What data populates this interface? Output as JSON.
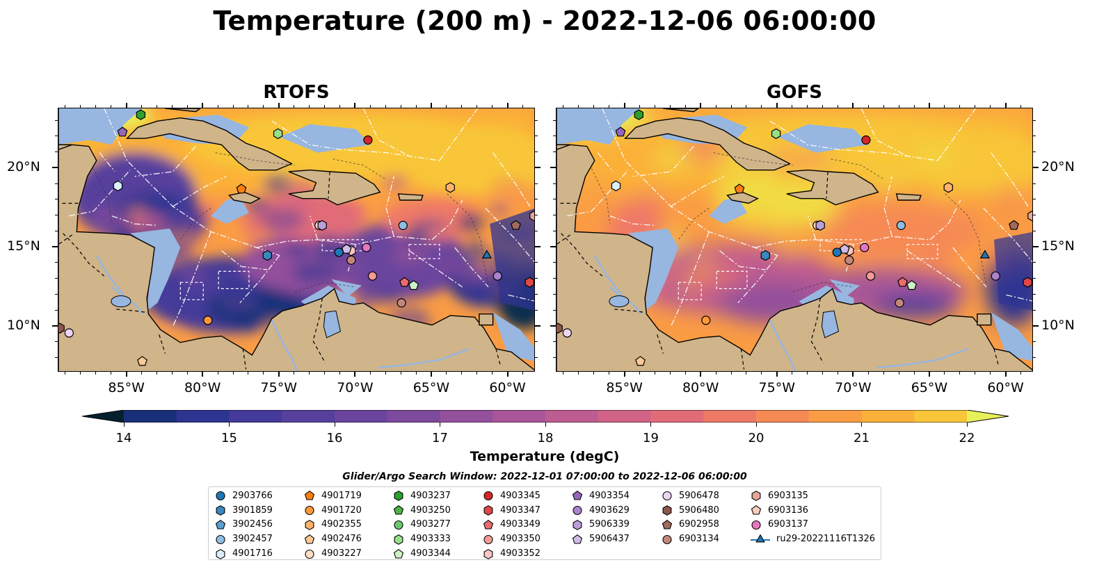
{
  "title": "Temperature (200 m) - 2022-12-06 06:00:00",
  "panels": [
    {
      "title": "RTOFS"
    },
    {
      "title": "GOFS"
    }
  ],
  "lon_ticks": [
    "85°W",
    "80°W",
    "75°W",
    "70°W",
    "65°W",
    "60°W"
  ],
  "lat_ticks": [
    "20°N",
    "15°N",
    "10°N"
  ],
  "map_extent": {
    "lon": [
      -89.5,
      -58.2
    ],
    "lat": [
      7.1,
      23.8
    ]
  },
  "colorbar": {
    "label": "Temperature (degC)",
    "ticks": [
      "14",
      "15",
      "16",
      "17",
      "18",
      "19",
      "20",
      "21",
      "22"
    ],
    "range": [
      14,
      22
    ],
    "colormap": "thermal",
    "colors": [
      "#04202f",
      "#0b2d4e",
      "#18307a",
      "#2e3491",
      "#443a99",
      "#573f9c",
      "#6a449d",
      "#7e4a9d",
      "#93509b",
      "#a85697",
      "#bd5c90",
      "#d06386",
      "#e16c78",
      "#ee7967",
      "#f68a54",
      "#fa9c44",
      "#fbb139",
      "#f8c638",
      "#f1dc43",
      "#e8f059"
    ]
  },
  "legend": {
    "title": "Glider/Argo Search Window: 2022-12-01 07:00:00 to 2022-12-06 06:00:00",
    "columns": [
      [
        {
          "label": "2903766",
          "marker": "circle",
          "color": "#1f77b4"
        },
        {
          "label": "3901859",
          "marker": "hexagon",
          "color": "#3a88c0"
        },
        {
          "label": "3902456",
          "marker": "pentagon",
          "color": "#5b9fd0"
        },
        {
          "label": "3902457",
          "marker": "circle",
          "color": "#8fbde3"
        },
        {
          "label": "4901716",
          "marker": "hexagon",
          "color": "#dceefa"
        }
      ],
      [
        {
          "label": "4901719",
          "marker": "pentagon",
          "color": "#ff7f0e"
        },
        {
          "label": "4901720",
          "marker": "circle",
          "color": "#ff9a3c"
        },
        {
          "label": "4902355",
          "marker": "hexagon",
          "color": "#ffb26b"
        },
        {
          "label": "4902476",
          "marker": "pentagon",
          "color": "#ffc896"
        },
        {
          "label": "4903227",
          "marker": "circle",
          "color": "#ffe0c2"
        }
      ],
      [
        {
          "label": "4903237",
          "marker": "hexagon",
          "color": "#2ca02c"
        },
        {
          "label": "4903250",
          "marker": "pentagon",
          "color": "#48b448"
        },
        {
          "label": "4903277",
          "marker": "circle",
          "color": "#6cc86c"
        },
        {
          "label": "4903333",
          "marker": "hexagon",
          "color": "#98df8a"
        },
        {
          "label": "4903344",
          "marker": "pentagon",
          "color": "#cdf2c4"
        }
      ],
      [
        {
          "label": "4903345",
          "marker": "circle",
          "color": "#d62728"
        },
        {
          "label": "4903347",
          "marker": "hexagon",
          "color": "#e04848"
        },
        {
          "label": "4903349",
          "marker": "pentagon",
          "color": "#ea6c6c"
        },
        {
          "label": "4903350",
          "marker": "circle",
          "color": "#f59a98"
        },
        {
          "label": "4903352",
          "marker": "hexagon",
          "color": "#fbc6c4"
        }
      ],
      [
        {
          "label": "4903354",
          "marker": "pentagon",
          "color": "#9467bd"
        },
        {
          "label": "4903629",
          "marker": "circle",
          "color": "#a983cb"
        },
        {
          "label": "5906339",
          "marker": "hexagon",
          "color": "#bc9ed8"
        },
        {
          "label": "5906437",
          "marker": "pentagon",
          "color": "#d1bce6"
        },
        {
          "label": "",
          "marker": "none",
          "color": ""
        }
      ],
      [
        {
          "label": "5906478",
          "marker": "circle",
          "color": "#ead6f5"
        },
        {
          "label": "5906480",
          "marker": "hexagon",
          "color": "#8c564b"
        },
        {
          "label": "6902958",
          "marker": "pentagon",
          "color": "#a06a5e"
        },
        {
          "label": "6903134",
          "marker": "circle",
          "color": "#c4877c"
        },
        {
          "label": "",
          "marker": "none",
          "color": ""
        }
      ],
      [
        {
          "label": "6903135",
          "marker": "hexagon",
          "color": "#e4a896"
        },
        {
          "label": "6903136",
          "marker": "pentagon",
          "color": "#f8cfbf"
        },
        {
          "label": "6903137",
          "marker": "circle",
          "color": "#e377c2"
        },
        {
          "label": "ru29-20221116T1326",
          "marker": "triangle-line",
          "color": "#1f77b4"
        },
        {
          "label": "",
          "marker": "none",
          "color": ""
        }
      ]
    ]
  },
  "markers": [
    {
      "id": "2903766",
      "lon": -71.1,
      "lat": 14.7
    },
    {
      "id": "3901859",
      "lon": -75.8,
      "lat": 14.5
    },
    {
      "id": "3902457",
      "lon": -66.9,
      "lat": 16.4
    },
    {
      "id": "4901716",
      "lon": -85.6,
      "lat": 18.9
    },
    {
      "id": "4901719",
      "lon": -77.5,
      "lat": 18.7
    },
    {
      "id": "4901720",
      "lon": -79.7,
      "lat": 10.4
    },
    {
      "id": "4902355",
      "lon": -63.8,
      "lat": 18.8
    },
    {
      "id": "4902476",
      "lon": -84.0,
      "lat": 7.8
    },
    {
      "id": "4903227",
      "lon": -72.4,
      "lat": 16.4
    },
    {
      "id": "4903237",
      "lon": -84.1,
      "lat": 23.4
    },
    {
      "id": "4903333",
      "lon": -75.1,
      "lat": 22.2
    },
    {
      "id": "4903344",
      "lon": -66.2,
      "lat": 12.6
    },
    {
      "id": "4903345",
      "lon": -69.2,
      "lat": 21.8
    },
    {
      "id": "4903347",
      "lon": -58.6,
      "lat": 12.8
    },
    {
      "id": "4903349",
      "lon": -66.8,
      "lat": 12.8
    },
    {
      "id": "4903350",
      "lon": -68.9,
      "lat": 13.2
    },
    {
      "id": "4903352",
      "lon": -70.3,
      "lat": 14.8
    },
    {
      "id": "4903354",
      "lon": -85.3,
      "lat": 22.3
    },
    {
      "id": "4903629",
      "lon": -60.7,
      "lat": 13.2
    },
    {
      "id": "5906339",
      "lon": -72.2,
      "lat": 16.4
    },
    {
      "id": "5906437",
      "lon": -70.6,
      "lat": 14.9
    },
    {
      "id": "5906478",
      "lon": -88.8,
      "lat": 9.6
    },
    {
      "id": "5906480",
      "lon": -89.4,
      "lat": 9.9
    },
    {
      "id": "6902958",
      "lon": -59.5,
      "lat": 16.4
    },
    {
      "id": "6903134",
      "lon": -70.3,
      "lat": 14.2
    },
    {
      "id": "6903135",
      "lon": -58.3,
      "lat": 17.0
    },
    {
      "id": "6903137",
      "lon": -69.3,
      "lat": 15.0
    },
    {
      "id": "6903134b",
      "lon": -67.0,
      "lat": 11.5
    },
    {
      "id": "ru29-20221116T1326",
      "lon": -61.4,
      "lat": 14.5
    }
  ]
}
